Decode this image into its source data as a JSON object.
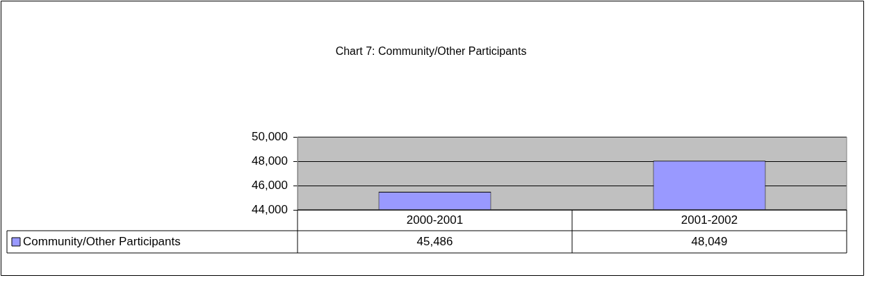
{
  "chart_data": {
    "type": "bar",
    "title": "Chart 7: Community/Other Participants",
    "categories": [
      "2000-2001",
      "2001-2002"
    ],
    "series": [
      {
        "name": "Community/Other Participants",
        "color": "#9999ff",
        "values": [
          45486,
          48049
        ],
        "value_labels": [
          "45,486",
          "48,049"
        ]
      }
    ],
    "ylim": [
      44000,
      50000
    ],
    "yticks": [
      {
        "value": 44000,
        "label": "44,000"
      },
      {
        "value": 46000,
        "label": "46,000"
      },
      {
        "value": 48000,
        "label": "48,000"
      },
      {
        "value": 50000,
        "label": "50,000"
      }
    ],
    "grid": "y",
    "legend": "bottom"
  }
}
